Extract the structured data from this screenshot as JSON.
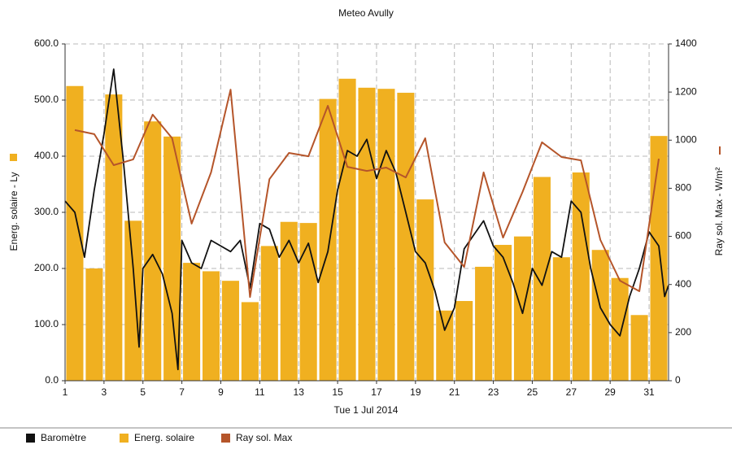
{
  "chart_data": {
    "type": "bar-line",
    "title": "Meteo  Avully",
    "x_label": "Tue 1 Jul 2014",
    "y_label": "Energ. solaire - Ly",
    "y2_label": "Ray sol. Max - W/m²",
    "xlim": [
      1,
      32
    ],
    "xticks": [
      1,
      3,
      5,
      7,
      9,
      11,
      13,
      15,
      17,
      19,
      21,
      23,
      25,
      27,
      29,
      31
    ],
    "ylim": [
      0,
      600
    ],
    "yticks": [
      {
        "value": 0,
        "label": "0.0"
      },
      {
        "value": 100,
        "label": "100.0"
      },
      {
        "value": 200,
        "label": "200.0"
      },
      {
        "value": 300,
        "label": "300.0"
      },
      {
        "value": 400,
        "label": "400.0"
      },
      {
        "value": 500,
        "label": "500.0"
      },
      {
        "value": 600,
        "label": "600.0"
      }
    ],
    "y2lim": [
      0,
      1400
    ],
    "y2ticks": [
      0,
      200,
      400,
      600,
      800,
      1000,
      1200,
      1400
    ],
    "grid": true,
    "series": [
      {
        "name": "Baromètre",
        "type": "line",
        "color": "#111111",
        "x": [
          1,
          1.5,
          2,
          2.5,
          3,
          3.5,
          4,
          4.5,
          4.8,
          5,
          5.5,
          6,
          6.5,
          6.8,
          7,
          7.5,
          8,
          8.5,
          9,
          9.5,
          10,
          10.5,
          11,
          11.5,
          12,
          12.5,
          13,
          13.5,
          14,
          14.5,
          15,
          15.5,
          16,
          16.5,
          17,
          17.5,
          18,
          18.5,
          19,
          19.5,
          20,
          20.5,
          21,
          21.5,
          22,
          22.5,
          23,
          23.5,
          24,
          24.5,
          25,
          25.5,
          26,
          26.5,
          27,
          27.5,
          28,
          28.5,
          29,
          29.5,
          30,
          30.5,
          31,
          31.5,
          31.8,
          32
        ],
        "values": [
          320,
          300,
          220,
          340,
          440,
          555,
          390,
          200,
          60,
          200,
          225,
          190,
          120,
          20,
          250,
          210,
          200,
          250,
          240,
          230,
          250,
          165,
          280,
          270,
          220,
          250,
          210,
          245,
          175,
          230,
          340,
          410,
          400,
          430,
          360,
          410,
          370,
          300,
          230,
          210,
          160,
          90,
          130,
          235,
          260,
          285,
          240,
          220,
          175,
          120,
          200,
          170,
          230,
          220,
          320,
          300,
          200,
          130,
          100,
          80,
          150,
          200,
          265,
          240,
          150,
          170
        ]
      },
      {
        "name": "Energ. solaire",
        "type": "bar",
        "color": "#f0b020",
        "x": [
          1,
          2,
          3,
          4,
          5,
          6,
          7,
          8,
          9,
          10,
          11,
          12,
          13,
          14,
          15,
          16,
          17,
          18,
          19,
          20,
          21,
          22,
          23,
          24,
          25,
          26,
          27,
          28,
          29,
          30,
          31
        ],
        "values": [
          525,
          200,
          510,
          285,
          462,
          435,
          210,
          195,
          178,
          140,
          240,
          283,
          281,
          502,
          538,
          522,
          520,
          513,
          323,
          125,
          142,
          203,
          242,
          257,
          363,
          220,
          371,
          233,
          183,
          117,
          436
        ]
      },
      {
        "name": "Ray sol. Max",
        "type": "line",
        "axis": "y2",
        "color": "#b5552a",
        "x": [
          1.5,
          2.5,
          3.5,
          4.5,
          5.5,
          6.5,
          7.5,
          8.5,
          9.5,
          10.5,
          11.5,
          12.5,
          13.5,
          14.5,
          15.5,
          16.5,
          17.5,
          18.5,
          19.5,
          20.5,
          21.5,
          22.5,
          23.5,
          24.5,
          25.5,
          26.5,
          27.5,
          28.5,
          29.5,
          30.5,
          31.5
        ],
        "values": [
          1042,
          1025,
          896,
          920,
          1106,
          1008,
          653,
          866,
          1210,
          348,
          838,
          947,
          933,
          1143,
          889,
          872,
          886,
          845,
          1008,
          575,
          473,
          866,
          595,
          785,
          991,
          930,
          916,
          585,
          416,
          372,
          923
        ]
      }
    ]
  }
}
